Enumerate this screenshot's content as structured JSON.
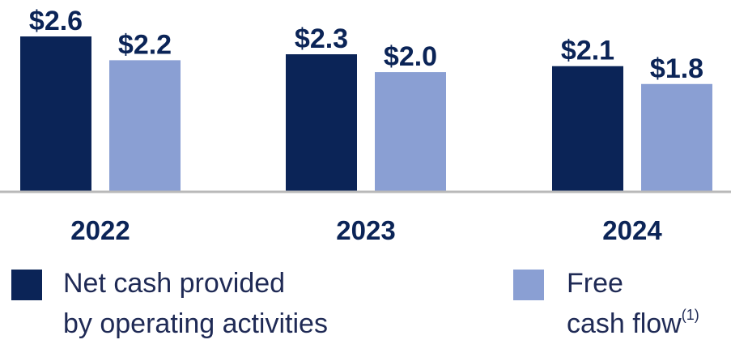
{
  "chart_data": {
    "type": "bar",
    "categories": [
      "2022",
      "2023",
      "2024"
    ],
    "series": [
      {
        "name": "Net cash provided by operating activities",
        "color": "#0b2457",
        "values": [
          2.6,
          2.3,
          2.1
        ],
        "labels": [
          "$2.6",
          "$2.3",
          "$2.1"
        ]
      },
      {
        "name": "Free cash flow(1)",
        "color": "#8a9fd3",
        "values": [
          2.2,
          2.0,
          1.8
        ],
        "labels": [
          "$2.2",
          "$2.0",
          "$1.8"
        ]
      }
    ],
    "ylim": [
      0,
      2.6
    ],
    "title": "",
    "xlabel": "",
    "ylabel": "",
    "grid": false,
    "legend": "bottom"
  },
  "legend": {
    "series1_line1": "Net cash provided",
    "series1_line2": "by operating activities",
    "series2_line1": "Free",
    "series2_line2": "cash flow",
    "series2_footnote": "(1)"
  },
  "colors": {
    "text": "#0b2457",
    "axis": "#b9b9b9"
  }
}
